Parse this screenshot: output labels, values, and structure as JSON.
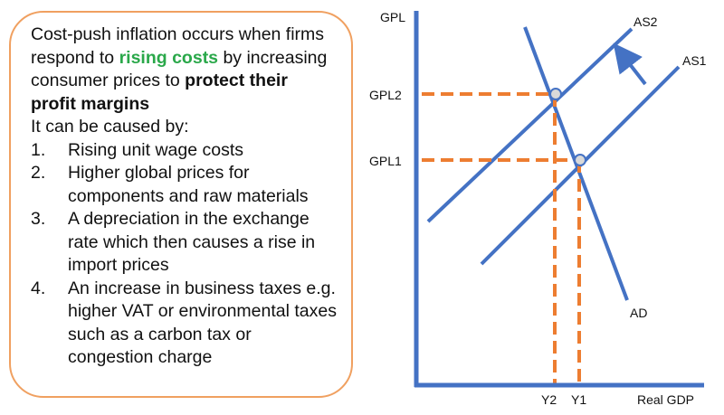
{
  "intro": {
    "part1": "Cost-push inflation occurs when firms respond to ",
    "highlight": "rising costs",
    "part2": " by increasing consumer prices to ",
    "bold": "protect their profit margins"
  },
  "causes_heading": "It can be caused by:",
  "causes": [
    {
      "num": "1.",
      "text": "Rising unit wage costs"
    },
    {
      "num": "2.",
      "text": "Higher global prices for components and raw materials"
    },
    {
      "num": "3.",
      "text": "A depreciation in the exchange rate which then causes a rise in import prices"
    },
    {
      "num": "4.",
      "text": "An increase in business taxes e.g. higher VAT or environmental taxes such as a carbon tax or congestion charge"
    }
  ],
  "diagram": {
    "y_axis_label": "GPL",
    "x_axis_label": "Real GDP",
    "curves": [
      "AS2",
      "AS1",
      "AD"
    ],
    "price_levels": [
      "GPL2",
      "GPL1"
    ],
    "outputs": [
      "Y2",
      "Y1"
    ],
    "colors": {
      "axis": "#4472c4",
      "curve": "#4472c4",
      "guide": "#ed7d31",
      "point_fill": "#d9d9d9",
      "border": "#f0a060",
      "highlight": "#2aa84a"
    }
  }
}
